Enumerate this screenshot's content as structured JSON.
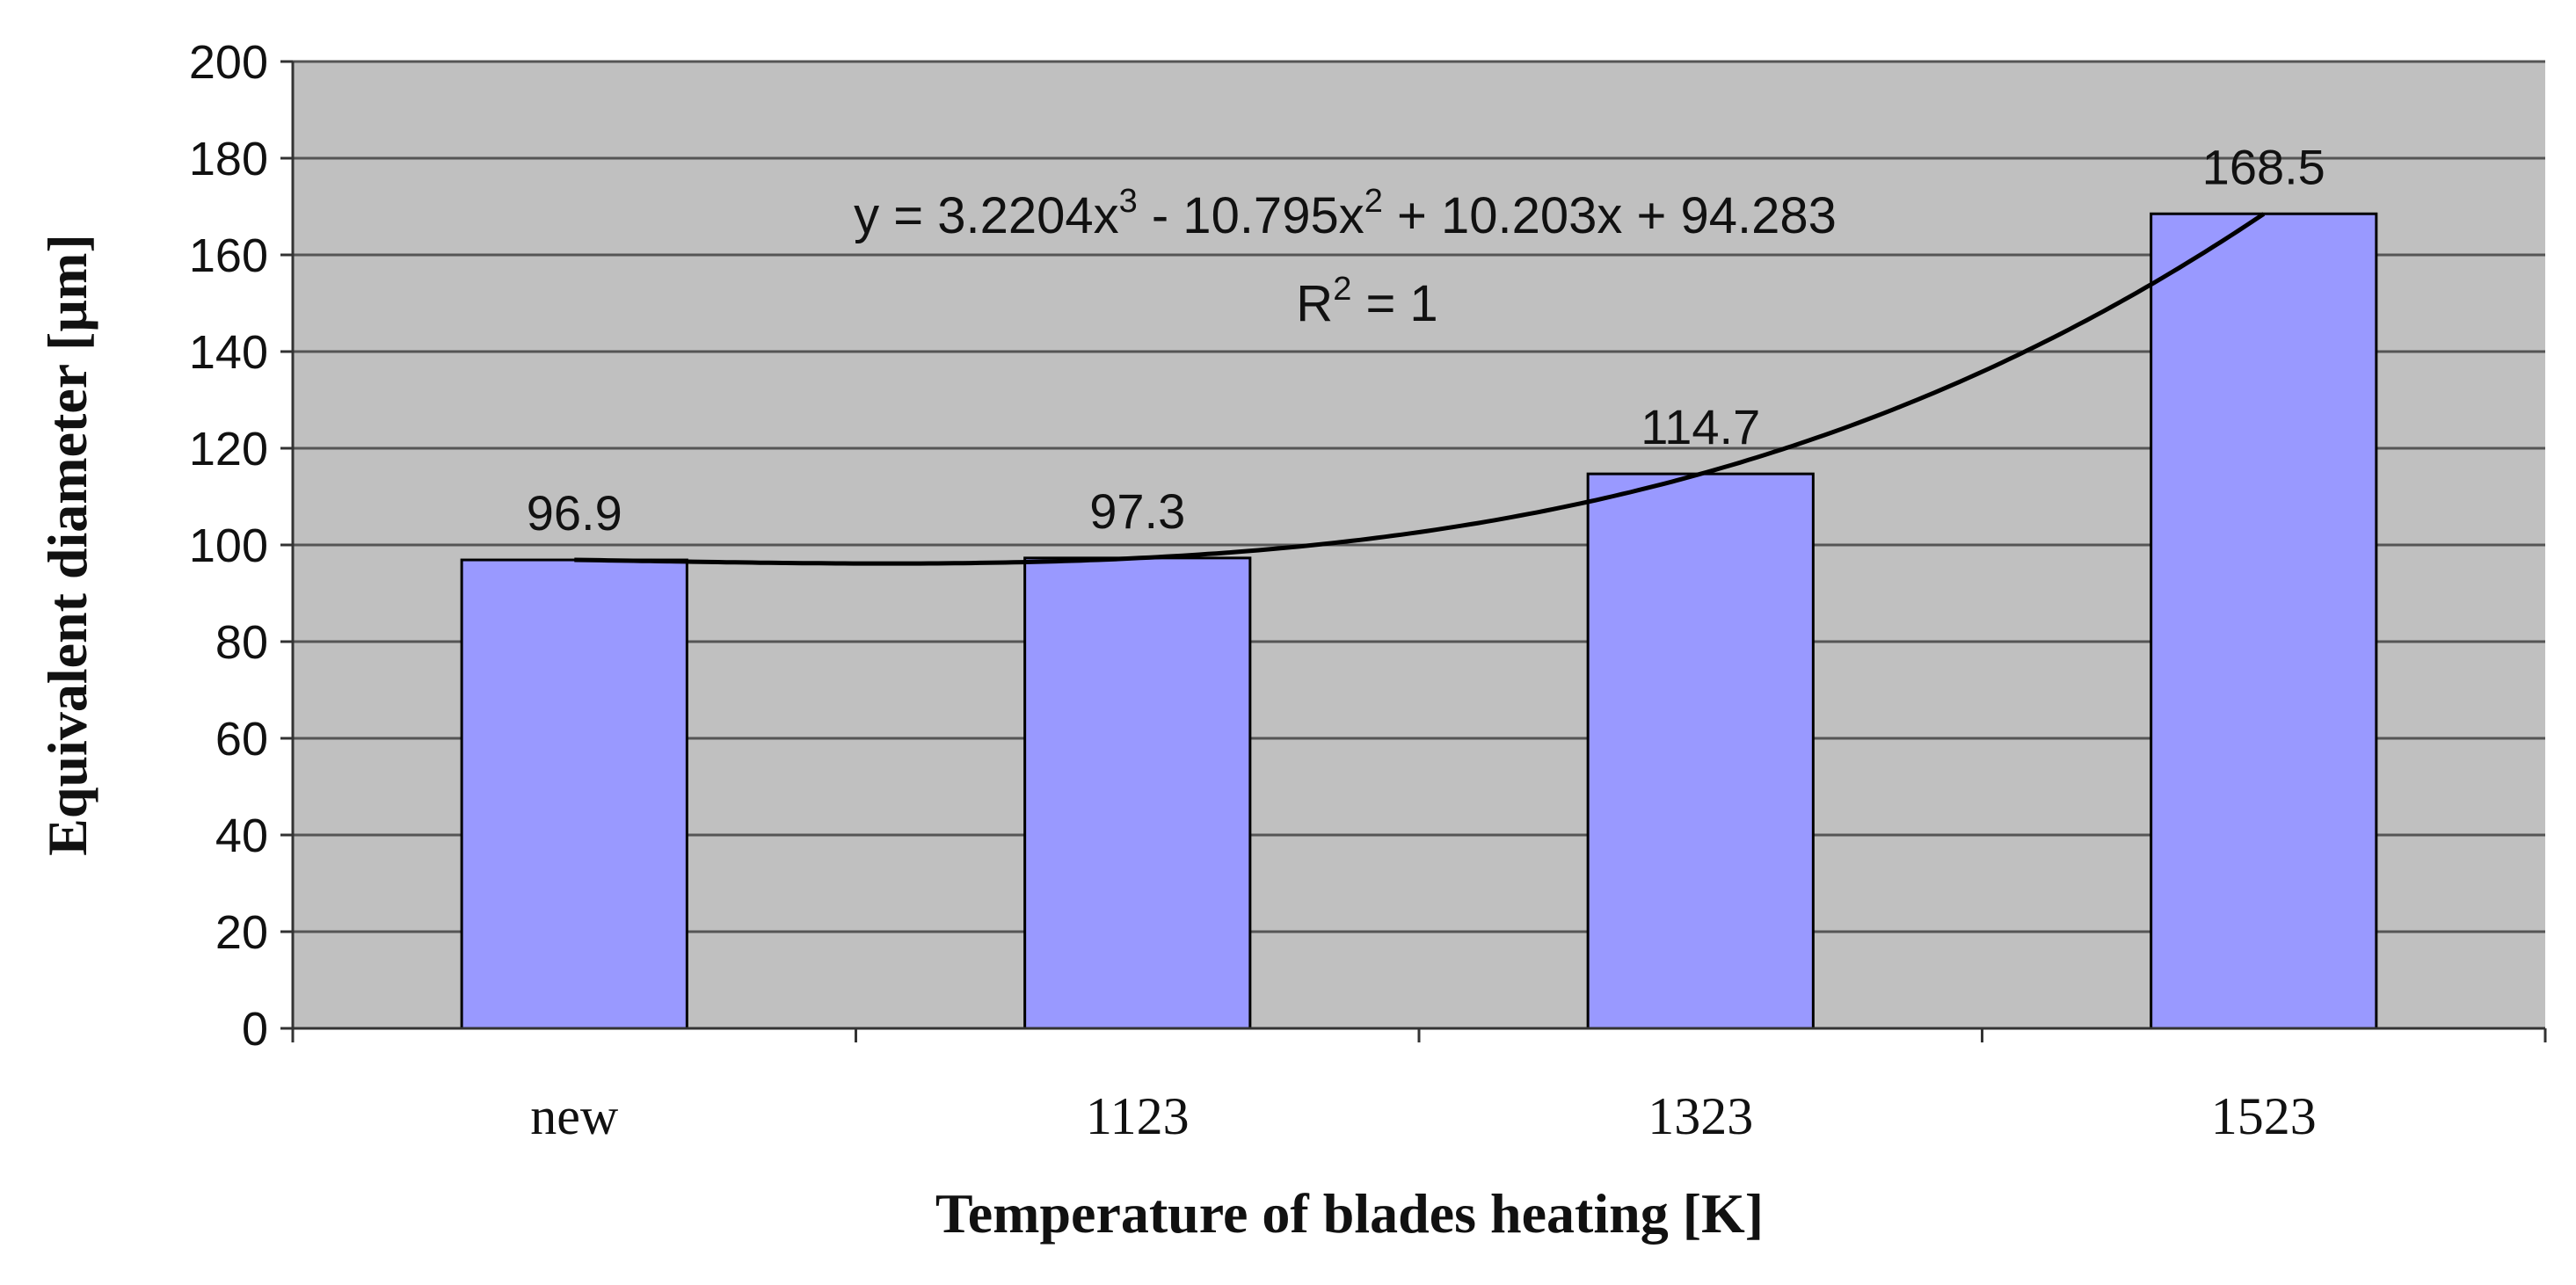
{
  "chart_data": {
    "type": "bar",
    "categories": [
      "new",
      "1123",
      "1323",
      "1523"
    ],
    "values": [
      96.9,
      97.3,
      114.7,
      168.5
    ],
    "data_labels": [
      "96.9",
      "97.3",
      "114.7",
      "168.5"
    ],
    "xlabel": "Temperature of blades heating [K]",
    "ylabel": "Equivalent diameter [µm]",
    "ylim": [
      0,
      200
    ],
    "yticks": [
      0,
      20,
      40,
      60,
      80,
      100,
      120,
      140,
      160,
      180,
      200
    ],
    "grid": true,
    "legend": "none",
    "trendline": {
      "type": "polynomial",
      "order": 3,
      "coefficients": [
        3.2204,
        -10.795,
        10.203,
        94.283
      ],
      "equation": {
        "prefix": "y = 3.2204x",
        "exp1": "3",
        "mid": " - 10.795x",
        "exp2": "2",
        "suffix": " + 10.203x + 94.283"
      },
      "r2": {
        "prefix": "R",
        "exp": "2",
        "suffix": " = 1"
      }
    },
    "colors": {
      "plot_background": "#c0c0c0",
      "bar_fill": "#9999ff",
      "bar_stroke": "#000000",
      "gridline": "#555555",
      "trendline": "#000000"
    }
  }
}
